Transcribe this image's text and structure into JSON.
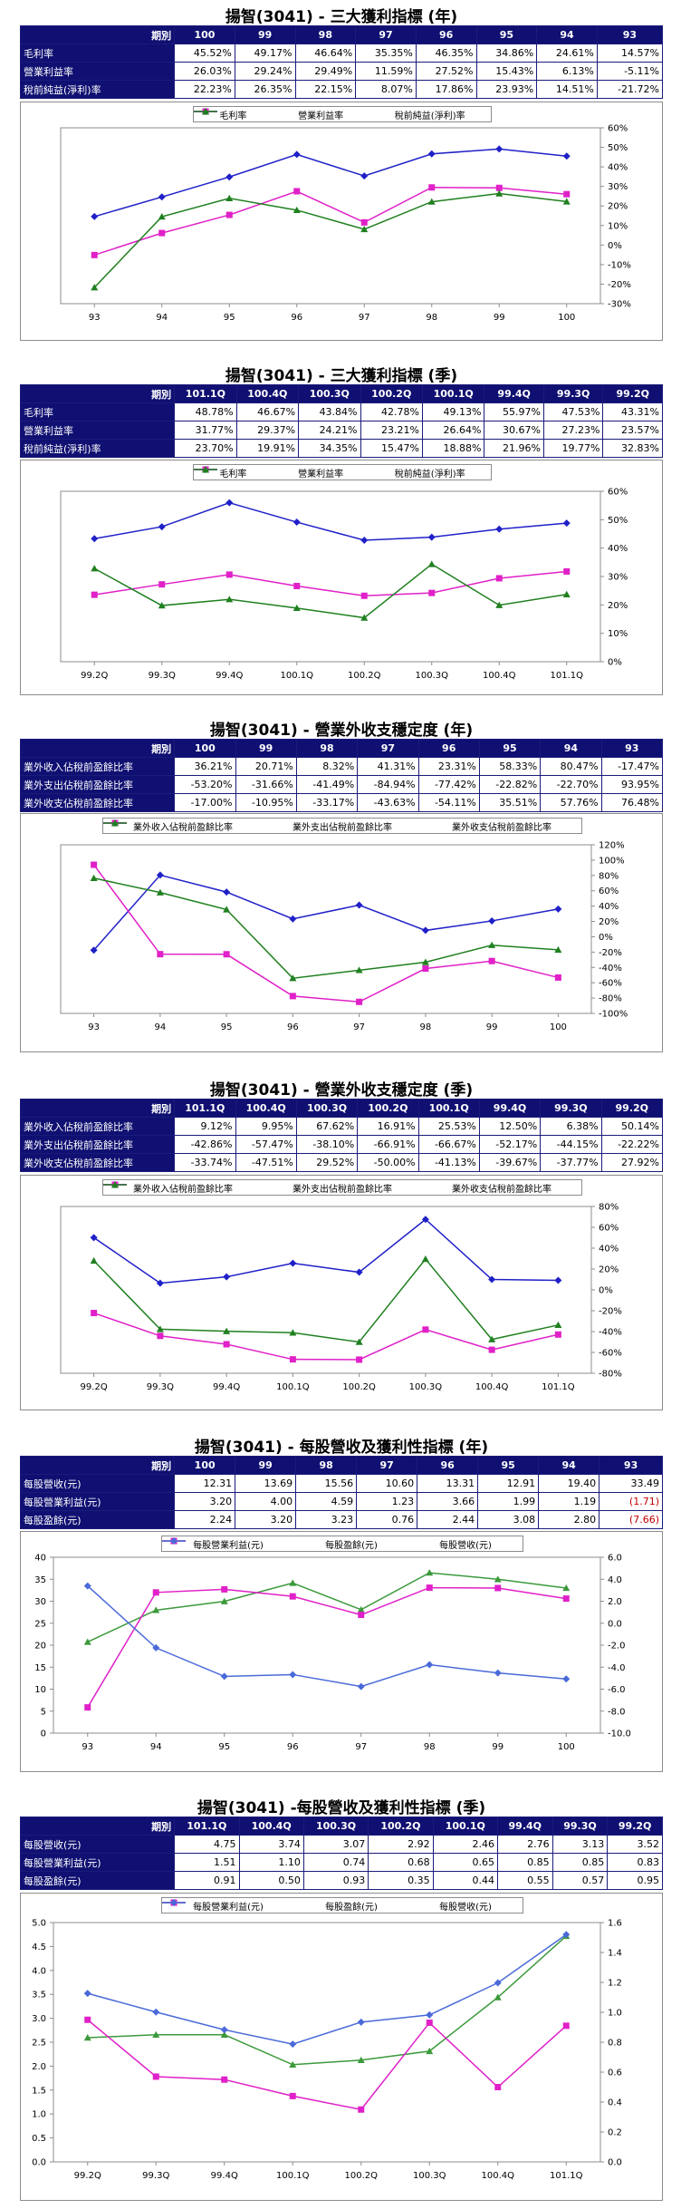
{
  "sections": [
    {
      "title": "揚智(3041) - 三大獲利指標 (年)",
      "header": [
        "期別",
        "100",
        "99",
        "98",
        "97",
        "96",
        "95",
        "94",
        "93"
      ],
      "rows": [
        {
          "label": "毛利率",
          "cells": [
            "45.52%",
            "49.17%",
            "46.64%",
            "35.35%",
            "46.35%",
            "34.86%",
            "24.61%",
            "14.57%"
          ]
        },
        {
          "label": "營業利益率",
          "cells": [
            "26.03%",
            "29.24%",
            "29.49%",
            "11.59%",
            "27.52%",
            "15.43%",
            "6.13%",
            "-5.11%"
          ]
        },
        {
          "label": "稅前純益(淨利)率",
          "cells": [
            "22.23%",
            "26.35%",
            "22.15%",
            "8.07%",
            "17.86%",
            "23.93%",
            "14.51%",
            "-21.72%"
          ]
        }
      ]
    },
    {
      "title": "揚智(3041) - 三大獲利指標 (季)",
      "header": [
        "期別",
        "101.1Q",
        "100.4Q",
        "100.3Q",
        "100.2Q",
        "100.1Q",
        "99.4Q",
        "99.3Q",
        "99.2Q"
      ],
      "rows": [
        {
          "label": "毛利率",
          "cells": [
            "48.78%",
            "46.67%",
            "43.84%",
            "42.78%",
            "49.13%",
            "55.97%",
            "47.53%",
            "43.31%"
          ]
        },
        {
          "label": "營業利益率",
          "cells": [
            "31.77%",
            "29.37%",
            "24.21%",
            "23.21%",
            "26.64%",
            "30.67%",
            "27.23%",
            "23.57%"
          ]
        },
        {
          "label": "稅前純益(淨利)率",
          "cells": [
            "23.70%",
            "19.91%",
            "34.35%",
            "15.47%",
            "18.88%",
            "21.96%",
            "19.77%",
            "32.83%"
          ]
        }
      ]
    },
    {
      "title": "揚智(3041) - 營業外收支穩定度 (年)",
      "header": [
        "期別",
        "100",
        "99",
        "98",
        "97",
        "96",
        "95",
        "94",
        "93"
      ],
      "rows": [
        {
          "label": "業外收入佔稅前盈餘比率",
          "cells": [
            "36.21%",
            "20.71%",
            "8.32%",
            "41.31%",
            "23.31%",
            "58.33%",
            "80.47%",
            "-17.47%"
          ]
        },
        {
          "label": "業外支出佔稅前盈餘比率",
          "cells": [
            "-53.20%",
            "-31.66%",
            "-41.49%",
            "-84.94%",
            "-77.42%",
            "-22.82%",
            "-22.70%",
            "93.95%"
          ]
        },
        {
          "label": "業外收支佔稅前盈餘比率",
          "cells": [
            "-17.00%",
            "-10.95%",
            "-33.17%",
            "-43.63%",
            "-54.11%",
            "35.51%",
            "57.76%",
            "76.48%"
          ]
        }
      ]
    },
    {
      "title": "揚智(3041) - 營業外收支穩定度 (季)",
      "header": [
        "期別",
        "101.1Q",
        "100.4Q",
        "100.3Q",
        "100.2Q",
        "100.1Q",
        "99.4Q",
        "99.3Q",
        "99.2Q"
      ],
      "rows": [
        {
          "label": "業外收入佔稅前盈餘比率",
          "cells": [
            "9.12%",
            "9.95%",
            "67.62%",
            "16.91%",
            "25.53%",
            "12.50%",
            "6.38%",
            "50.14%"
          ]
        },
        {
          "label": "業外支出佔稅前盈餘比率",
          "cells": [
            "-42.86%",
            "-57.47%",
            "-38.10%",
            "-66.91%",
            "-66.67%",
            "-52.17%",
            "-44.15%",
            "-22.22%"
          ]
        },
        {
          "label": "業外收支佔稅前盈餘比率",
          "cells": [
            "-33.74%",
            "-47.51%",
            "29.52%",
            "-50.00%",
            "-41.13%",
            "-39.67%",
            "-37.77%",
            "27.92%"
          ]
        }
      ]
    },
    {
      "title": "揚智(3041) - 每股營收及獲利性指標 (年)",
      "header": [
        "期別",
        "100",
        "99",
        "98",
        "97",
        "96",
        "95",
        "94",
        "93"
      ],
      "rows": [
        {
          "label": "每股營收(元)",
          "cells": [
            "12.31",
            "13.69",
            "15.56",
            "10.60",
            "13.31",
            "12.91",
            "19.40",
            "33.49"
          ]
        },
        {
          "label": "每股營業利益(元)",
          "cells": [
            "3.20",
            "4.00",
            "4.59",
            "1.23",
            "3.66",
            "1.99",
            "1.19",
            "(1.71)"
          ]
        },
        {
          "label": "每股盈餘(元)",
          "cells": [
            "2.24",
            "3.20",
            "3.23",
            "0.76",
            "2.44",
            "3.08",
            "2.80",
            "(7.66)"
          ]
        }
      ]
    },
    {
      "title": "揚智(3041) -每股營收及獲利性指標 (季)",
      "header": [
        "期別",
        "101.1Q",
        "100.4Q",
        "100.3Q",
        "100.2Q",
        "100.1Q",
        "99.4Q",
        "99.3Q",
        "99.2Q"
      ],
      "rows": [
        {
          "label": "每股營收(元)",
          "cells": [
            "4.75",
            "3.74",
            "3.07",
            "2.92",
            "2.46",
            "2.76",
            "3.13",
            "3.52"
          ]
        },
        {
          "label": "每股營業利益(元)",
          "cells": [
            "1.51",
            "1.10",
            "0.74",
            "0.68",
            "0.65",
            "0.85",
            "0.85",
            "0.83"
          ]
        },
        {
          "label": "每股盈餘(元)",
          "cells": [
            "0.91",
            "0.50",
            "0.93",
            "0.35",
            "0.44",
            "0.55",
            "0.57",
            "0.95"
          ]
        }
      ]
    }
  ],
  "chart_data": [
    {
      "type": "line",
      "categories": [
        "93",
        "94",
        "95",
        "96",
        "97",
        "98",
        "99",
        "100"
      ],
      "series": [
        {
          "name": "毛利率",
          "color": "#2020c8",
          "marker": "diamond",
          "values": [
            14.57,
            24.61,
            34.86,
            46.35,
            35.35,
            46.64,
            49.17,
            45.52
          ]
        },
        {
          "name": "營業利益率",
          "color": "#e020c8",
          "marker": "square",
          "values": [
            -5.11,
            6.13,
            15.43,
            27.52,
            11.59,
            29.49,
            29.24,
            26.03
          ]
        },
        {
          "name": "稅前純益(淨利)率",
          "color": "#208020",
          "marker": "triangle",
          "values": [
            -21.72,
            14.51,
            23.93,
            17.86,
            8.07,
            22.15,
            26.35,
            22.23
          ]
        }
      ],
      "y_right": {
        "min": -30,
        "max": 60,
        "step": 10,
        "suffix": "%"
      },
      "grid": false,
      "legend": "top"
    },
    {
      "type": "line",
      "categories": [
        "99.2Q",
        "99.3Q",
        "99.4Q",
        "100.1Q",
        "100.2Q",
        "100.3Q",
        "100.4Q",
        "101.1Q"
      ],
      "series": [
        {
          "name": "毛利率",
          "color": "#2020c8",
          "marker": "diamond",
          "values": [
            43.31,
            47.53,
            55.97,
            49.13,
            42.78,
            43.84,
            46.67,
            48.78
          ]
        },
        {
          "name": "營業利益率",
          "color": "#e020c8",
          "marker": "square",
          "values": [
            23.57,
            27.23,
            30.67,
            26.64,
            23.21,
            24.21,
            29.37,
            31.77
          ]
        },
        {
          "name": "稅前純益(淨利)率",
          "color": "#208020",
          "marker": "triangle",
          "values": [
            32.83,
            19.77,
            21.96,
            18.88,
            15.47,
            34.35,
            19.91,
            23.7
          ]
        }
      ],
      "y_right": {
        "min": 0,
        "max": 60,
        "step": 10,
        "suffix": "%"
      },
      "grid": false,
      "legend": "top"
    },
    {
      "type": "line",
      "categories": [
        "93",
        "94",
        "95",
        "96",
        "97",
        "98",
        "99",
        "100"
      ],
      "series": [
        {
          "name": "業外收入佔稅前盈餘比率",
          "color": "#2020c8",
          "marker": "diamond",
          "values": [
            -17.47,
            80.47,
            58.33,
            23.31,
            41.31,
            8.32,
            20.71,
            36.21
          ]
        },
        {
          "name": "業外支出佔稅前盈餘比率",
          "color": "#e020c8",
          "marker": "square",
          "values": [
            93.95,
            -22.7,
            -22.82,
            -77.42,
            -84.94,
            -41.49,
            -31.66,
            -53.2
          ]
        },
        {
          "name": "業外收支佔稅前盈餘比率",
          "color": "#208020",
          "marker": "triangle",
          "values": [
            76.48,
            57.76,
            35.51,
            -54.11,
            -43.63,
            -33.17,
            -10.95,
            -17.0
          ]
        }
      ],
      "y_right": {
        "min": -100,
        "max": 120,
        "step": 20,
        "suffix": "%"
      },
      "grid": false,
      "legend": "top"
    },
    {
      "type": "line",
      "categories": [
        "99.2Q",
        "99.3Q",
        "99.4Q",
        "100.1Q",
        "100.2Q",
        "100.3Q",
        "100.4Q",
        "101.1Q"
      ],
      "series": [
        {
          "name": "業外收入佔稅前盈餘比率",
          "color": "#2020c8",
          "marker": "diamond",
          "values": [
            50.14,
            6.38,
            12.5,
            25.53,
            16.91,
            67.62,
            9.95,
            9.12
          ]
        },
        {
          "name": "業外支出佔稅前盈餘比率",
          "color": "#e020c8",
          "marker": "square",
          "values": [
            -22.22,
            -44.15,
            -52.17,
            -66.67,
            -66.91,
            -38.1,
            -57.47,
            -42.86
          ]
        },
        {
          "name": "業外收支佔稅前盈餘比率",
          "color": "#208020",
          "marker": "triangle",
          "values": [
            27.92,
            -37.77,
            -39.67,
            -41.13,
            -50.0,
            29.52,
            -47.51,
            -33.74
          ]
        }
      ],
      "y_right": {
        "min": -80,
        "max": 80,
        "step": 20,
        "suffix": "%"
      },
      "grid": false,
      "legend": "top"
    },
    {
      "type": "line",
      "categories": [
        "93",
        "94",
        "95",
        "96",
        "97",
        "98",
        "99",
        "100"
      ],
      "series": [
        {
          "name": "每股營業利益(元)",
          "color": "#3c9a3c",
          "marker": "triangle",
          "axis": "right",
          "values": [
            -1.71,
            1.19,
            1.99,
            3.66,
            1.23,
            4.59,
            4.0,
            3.2
          ]
        },
        {
          "name": "每股盈餘(元)",
          "color": "#e020c8",
          "marker": "square",
          "axis": "right",
          "values": [
            -7.66,
            2.8,
            3.08,
            2.44,
            0.76,
            3.23,
            3.2,
            2.24
          ]
        },
        {
          "name": "每股營收(元)",
          "color": "#4a6ad8",
          "marker": "diamond",
          "axis": "left",
          "values": [
            33.49,
            19.4,
            12.91,
            13.31,
            10.6,
            15.56,
            13.69,
            12.31
          ]
        }
      ],
      "y_left": {
        "min": 0,
        "max": 40,
        "step": 5,
        "decimals": 0
      },
      "y_right": {
        "min": -10,
        "max": 6,
        "step": 2,
        "decimals": 1
      },
      "grid": false,
      "legend": "top"
    },
    {
      "type": "line",
      "categories": [
        "99.2Q",
        "99.3Q",
        "99.4Q",
        "100.1Q",
        "100.2Q",
        "100.3Q",
        "100.4Q",
        "101.1Q"
      ],
      "series": [
        {
          "name": "每股營業利益(元)",
          "color": "#3c9a3c",
          "marker": "triangle",
          "axis": "right",
          "values": [
            0.83,
            0.85,
            0.85,
            0.65,
            0.68,
            0.74,
            1.1,
            1.51
          ]
        },
        {
          "name": "每股盈餘(元)",
          "color": "#e020c8",
          "marker": "square",
          "axis": "right",
          "values": [
            0.95,
            0.57,
            0.55,
            0.44,
            0.35,
            0.93,
            0.5,
            0.91
          ]
        },
        {
          "name": "每股營收(元)",
          "color": "#4a6ad8",
          "marker": "diamond",
          "axis": "left",
          "values": [
            3.52,
            3.13,
            2.76,
            2.46,
            2.92,
            3.07,
            3.74,
            4.75
          ]
        }
      ],
      "y_left": {
        "min": 0,
        "max": 5,
        "step": 0.5,
        "decimals": 1
      },
      "y_right": {
        "min": 0,
        "max": 1.6,
        "step": 0.2,
        "decimals": 1
      },
      "grid": false,
      "legend": "top"
    }
  ]
}
